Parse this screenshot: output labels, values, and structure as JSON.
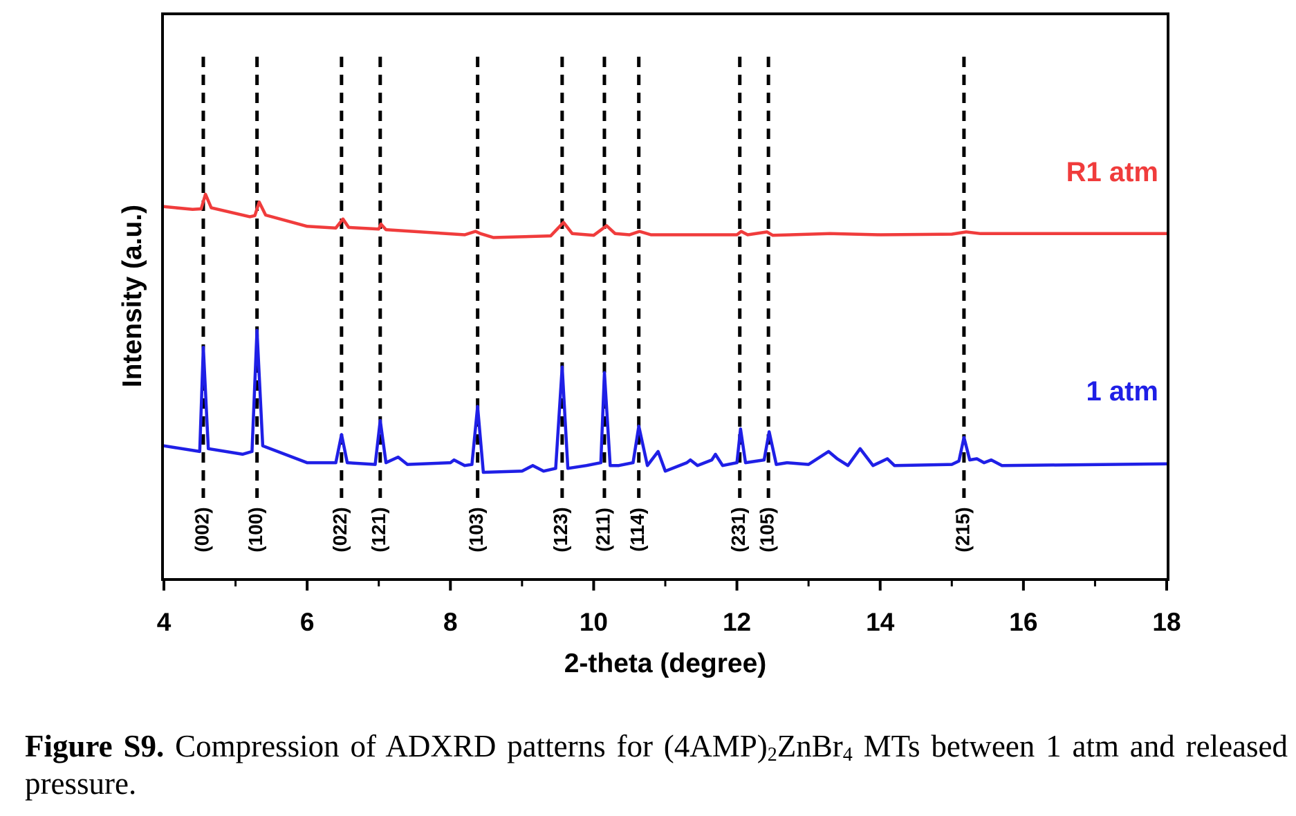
{
  "chart_data": {
    "type": "line",
    "xlabel": "2-theta (degree)",
    "ylabel": "Intensity (a.u.)",
    "xlim": [
      4,
      18
    ],
    "ylim": [
      0,
      10
    ],
    "x_ticks": [
      4,
      6,
      8,
      10,
      12,
      14,
      16,
      18
    ],
    "x_tick_labels": [
      "4",
      "6",
      "8",
      "10",
      "12",
      "14",
      "16",
      "18"
    ],
    "y_ticks_shown": false,
    "grid": false,
    "legend": "curve labels at right",
    "series": [
      {
        "name": "R1 atm",
        "color": "#f03c3c",
        "offset": 6.0,
        "points": [
          [
            4.0,
            0.6
          ],
          [
            4.4,
            0.55
          ],
          [
            4.52,
            0.56
          ],
          [
            4.58,
            0.82
          ],
          [
            4.66,
            0.58
          ],
          [
            5.2,
            0.42
          ],
          [
            5.27,
            0.44
          ],
          [
            5.33,
            0.68
          ],
          [
            5.42,
            0.45
          ],
          [
            6.0,
            0.25
          ],
          [
            6.4,
            0.22
          ],
          [
            6.5,
            0.38
          ],
          [
            6.58,
            0.23
          ],
          [
            7.0,
            0.2
          ],
          [
            7.03,
            0.29
          ],
          [
            7.1,
            0.19
          ],
          [
            8.2,
            0.1
          ],
          [
            8.35,
            0.16
          ],
          [
            8.42,
            0.12
          ],
          [
            8.6,
            0.05
          ],
          [
            9.4,
            0.08
          ],
          [
            9.58,
            0.32
          ],
          [
            9.7,
            0.12
          ],
          [
            10.0,
            0.09
          ],
          [
            10.18,
            0.26
          ],
          [
            10.3,
            0.12
          ],
          [
            10.5,
            0.1
          ],
          [
            10.64,
            0.16
          ],
          [
            10.8,
            0.1
          ],
          [
            12.0,
            0.1
          ],
          [
            12.06,
            0.16
          ],
          [
            12.15,
            0.1
          ],
          [
            12.42,
            0.15
          ],
          [
            12.5,
            0.09
          ],
          [
            13.3,
            0.12
          ],
          [
            14.0,
            0.1
          ],
          [
            15.0,
            0.11
          ],
          [
            15.2,
            0.15
          ],
          [
            15.4,
            0.12
          ],
          [
            18.0,
            0.12
          ]
        ]
      },
      {
        "name": "1 atm",
        "color": "#1f1fe6",
        "offset": 2.0,
        "points": [
          [
            4.0,
            0.35
          ],
          [
            4.5,
            0.25
          ],
          [
            4.55,
            2.1
          ],
          [
            4.62,
            0.3
          ],
          [
            5.1,
            0.2
          ],
          [
            5.23,
            0.25
          ],
          [
            5.3,
            2.4
          ],
          [
            5.38,
            0.35
          ],
          [
            6.0,
            0.05
          ],
          [
            6.4,
            0.05
          ],
          [
            6.48,
            0.55
          ],
          [
            6.56,
            0.05
          ],
          [
            6.95,
            0.02
          ],
          [
            7.02,
            0.8
          ],
          [
            7.1,
            0.05
          ],
          [
            7.27,
            0.15
          ],
          [
            7.4,
            0.02
          ],
          [
            8.0,
            0.05
          ],
          [
            8.05,
            0.1
          ],
          [
            8.2,
            0.0
          ],
          [
            8.3,
            0.02
          ],
          [
            8.38,
            1.05
          ],
          [
            8.46,
            -0.12
          ],
          [
            9.0,
            -0.1
          ],
          [
            9.15,
            0.0
          ],
          [
            9.3,
            -0.1
          ],
          [
            9.47,
            -0.05
          ],
          [
            9.56,
            1.75
          ],
          [
            9.64,
            -0.05
          ],
          [
            9.9,
            0.0
          ],
          [
            10.1,
            0.05
          ],
          [
            10.15,
            1.65
          ],
          [
            10.23,
            0.0
          ],
          [
            10.35,
            0.0
          ],
          [
            10.55,
            0.05
          ],
          [
            10.63,
            0.7
          ],
          [
            10.75,
            0.0
          ],
          [
            10.9,
            0.25
          ],
          [
            11.0,
            -0.1
          ],
          [
            11.3,
            0.05
          ],
          [
            11.35,
            0.1
          ],
          [
            11.45,
            0.0
          ],
          [
            11.65,
            0.1
          ],
          [
            11.7,
            0.2
          ],
          [
            11.8,
            0.0
          ],
          [
            12.0,
            0.05
          ],
          [
            12.05,
            0.65
          ],
          [
            12.12,
            0.05
          ],
          [
            12.38,
            0.1
          ],
          [
            12.45,
            0.6
          ],
          [
            12.55,
            0.02
          ],
          [
            12.7,
            0.05
          ],
          [
            13.0,
            0.02
          ],
          [
            13.28,
            0.25
          ],
          [
            13.4,
            0.12
          ],
          [
            13.55,
            0.0
          ],
          [
            13.72,
            0.3
          ],
          [
            13.9,
            0.0
          ],
          [
            14.1,
            0.12
          ],
          [
            14.2,
            0.0
          ],
          [
            15.0,
            0.02
          ],
          [
            15.1,
            0.08
          ],
          [
            15.17,
            0.5
          ],
          [
            15.25,
            0.1
          ],
          [
            15.35,
            0.12
          ],
          [
            15.45,
            0.05
          ],
          [
            15.55,
            0.1
          ],
          [
            15.7,
            0.0
          ],
          [
            18.0,
            0.03
          ]
        ]
      }
    ],
    "reference_lines": {
      "style": "black dashed vertical",
      "items": [
        {
          "x": 4.55,
          "label": "(002)"
        },
        {
          "x": 5.3,
          "label": "(100)"
        },
        {
          "x": 6.48,
          "label": "(022)"
        },
        {
          "x": 7.02,
          "label": "(121)"
        },
        {
          "x": 8.38,
          "label": "(103)"
        },
        {
          "x": 9.56,
          "label": "(123)"
        },
        {
          "x": 10.15,
          "label": "(211)"
        },
        {
          "x": 10.63,
          "label": "(114)"
        },
        {
          "x": 12.04,
          "label": "(231)"
        },
        {
          "x": 12.44,
          "label": "(105)"
        },
        {
          "x": 15.17,
          "label": "(215)"
        }
      ]
    }
  },
  "caption": {
    "label": "Figure S9.",
    "text_before": " Compression of ADXRD patterns for (4AMP)",
    "sub1": "2",
    "text_mid": "ZnBr",
    "sub2": "4",
    "text_after": " MTs between 1 atm and released pressure."
  }
}
